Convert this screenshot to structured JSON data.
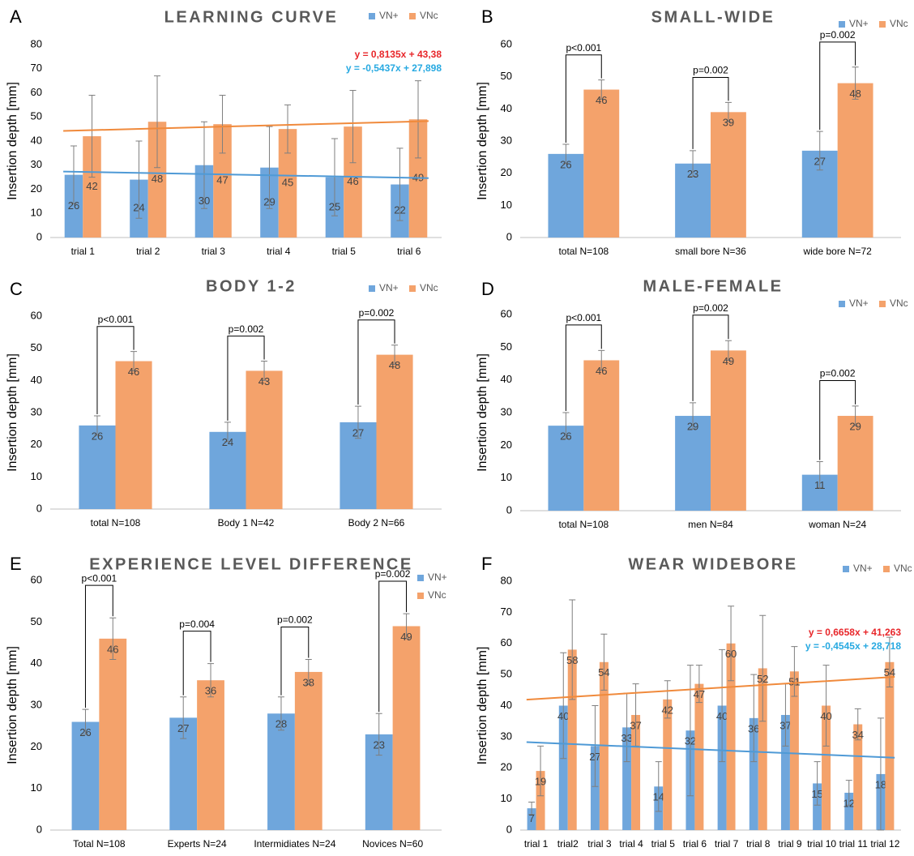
{
  "chart_data": [
    {
      "type": "bar",
      "panel": "A",
      "title": "LEARNING CURVE",
      "y_label": "Insertion depth [mm]",
      "legend": "top-right",
      "label_position": "center",
      "categories": [
        "trial 1",
        "trial 2",
        "trial 3",
        "trial 4",
        "trial 5",
        "trial 6"
      ],
      "series": [
        {
          "name": "VN+",
          "color": "#6fa6dc",
          "values": [
            26,
            24,
            30,
            29,
            25,
            22
          ],
          "errors": [
            12,
            16,
            18,
            17,
            16,
            15
          ]
        },
        {
          "name": "VNc",
          "color": "#f4a26b",
          "values": [
            42,
            48,
            47,
            45,
            46,
            49
          ],
          "errors": [
            17,
            19,
            12,
            10,
            15,
            16
          ]
        }
      ],
      "trendlines": [
        {
          "label": "y = 0,8135x + 43,38",
          "slope": 0.8135,
          "intercept": 43.38,
          "color": "#f08a3c",
          "label_color": "#e8262a"
        },
        {
          "label": "y = -0,5437x + 27,898",
          "slope": -0.5437,
          "intercept": 27.898,
          "color": "#4f9ad6",
          "label_color": "#27a9e1"
        }
      ],
      "ylim": [
        0,
        80
      ],
      "yticks": [
        0,
        10,
        20,
        30,
        40,
        50,
        60,
        70,
        80
      ]
    },
    {
      "type": "bar",
      "panel": "B",
      "title": "SMALL-WIDE",
      "y_label": "Insertion depth [mm]",
      "legend": "top-right",
      "label_position": "top",
      "categories": [
        "total N=108",
        "small bore N=36",
        "wide bore N=72"
      ],
      "series": [
        {
          "name": "VN+",
          "color": "#6fa6dc",
          "values": [
            26,
            23,
            27
          ],
          "errors": [
            3,
            4,
            6
          ]
        },
        {
          "name": "VNc",
          "color": "#f4a26b",
          "values": [
            46,
            39,
            48
          ],
          "errors": [
            3,
            3,
            5
          ]
        }
      ],
      "p_labels": [
        "p<0.001",
        "p=0.002",
        "p=0.002"
      ],
      "ylim": [
        0,
        60
      ],
      "yticks": [
        0,
        10,
        20,
        30,
        40,
        50,
        60
      ]
    },
    {
      "type": "bar",
      "panel": "C",
      "title": "BODY 1-2",
      "y_label": "Insertion depth [mm]",
      "legend": "top-right",
      "label_position": "top",
      "categories": [
        "total N=108",
        "Body 1 N=42",
        "Body 2 N=66"
      ],
      "series": [
        {
          "name": "VN+",
          "color": "#6fa6dc",
          "values": [
            26,
            24,
            27
          ],
          "errors": [
            3,
            3,
            5
          ]
        },
        {
          "name": "VNc",
          "color": "#f4a26b",
          "values": [
            46,
            43,
            48
          ],
          "errors": [
            3,
            3,
            3
          ]
        }
      ],
      "p_labels": [
        "p<0.001",
        "p=0.002",
        "p=0.002"
      ],
      "ylim": [
        0,
        60
      ],
      "yticks": [
        0,
        10,
        20,
        30,
        40,
        50,
        60
      ]
    },
    {
      "type": "bar",
      "panel": "D",
      "title": "MALE-FEMALE",
      "y_label": "Insertion depth [mm]",
      "legend": "top-right",
      "label_position": "top",
      "categories": [
        "total N=108",
        "men N=84",
        "woman N=24"
      ],
      "series": [
        {
          "name": "VN+",
          "color": "#6fa6dc",
          "values": [
            26,
            29,
            11
          ],
          "errors": [
            4,
            4,
            4
          ]
        },
        {
          "name": "VNc",
          "color": "#f4a26b",
          "values": [
            46,
            49,
            29
          ],
          "errors": [
            3,
            3,
            3
          ]
        }
      ],
      "p_labels": [
        "p<0.001",
        "p=0.002",
        "p=0.002"
      ],
      "ylim": [
        0,
        60
      ],
      "yticks": [
        0,
        10,
        20,
        30,
        40,
        50,
        60
      ]
    },
    {
      "type": "bar",
      "panel": "E",
      "title": "EXPERIENCE LEVEL DIFFERENCE",
      "y_label": "Insertion depth [mm]",
      "legend": "top-right",
      "legend_orientation": "vertical",
      "label_position": "top",
      "categories": [
        "Total N=108",
        "Experts N=24",
        "Intermidiates N=24",
        "Novices N=60"
      ],
      "series": [
        {
          "name": "VN+",
          "color": "#6fa6dc",
          "values": [
            26,
            27,
            28,
            23
          ],
          "errors": [
            3,
            5,
            4,
            5
          ]
        },
        {
          "name": "VNc",
          "color": "#f4a26b",
          "values": [
            46,
            36,
            38,
            49
          ],
          "errors": [
            5,
            4,
            3,
            3
          ]
        }
      ],
      "p_labels": [
        "p<0.001",
        "p=0.004",
        "p=0.002",
        "p=0.002"
      ],
      "ylim": [
        0,
        60
      ],
      "yticks": [
        0,
        10,
        20,
        30,
        40,
        50,
        60
      ]
    },
    {
      "type": "bar",
      "panel": "F",
      "title": "WEAR WIDEBORE",
      "y_label": "Insertion depth [mm]",
      "legend": "top-right",
      "label_position": "top",
      "categories": [
        "trial 1",
        "trial2",
        "trial 3",
        "trial 4",
        "trial 5",
        "trial 6",
        "trial 7",
        "trial 8",
        "trial 9",
        "trial 10",
        "trial 11",
        "trial 12"
      ],
      "series": [
        {
          "name": "VN+",
          "color": "#6fa6dc",
          "values": [
            7,
            40,
            27,
            33,
            14,
            32,
            40,
            36,
            37,
            15,
            12,
            18
          ],
          "errors": [
            2,
            17,
            13,
            11,
            8,
            21,
            18,
            14,
            10,
            7,
            4,
            18
          ]
        },
        {
          "name": "VNc",
          "color": "#f4a26b",
          "values": [
            19,
            58,
            54,
            37,
            42,
            47,
            60,
            52,
            51,
            40,
            34,
            54
          ],
          "errors": [
            8,
            16,
            9,
            10,
            6,
            6,
            12,
            17,
            8,
            13,
            5,
            8
          ]
        }
      ],
      "trendlines": [
        {
          "label": "y = 0,6658x + 41,263",
          "slope": 0.6658,
          "intercept": 41.263,
          "color": "#f08a3c",
          "label_color": "#e8262a"
        },
        {
          "label": "y = -0,4545x + 28,718",
          "slope": -0.4545,
          "intercept": 28.718,
          "color": "#4f9ad6",
          "label_color": "#27a9e1"
        }
      ],
      "ylim": [
        0,
        80
      ],
      "yticks": [
        0,
        10,
        20,
        30,
        40,
        50,
        60,
        70,
        80
      ]
    }
  ]
}
